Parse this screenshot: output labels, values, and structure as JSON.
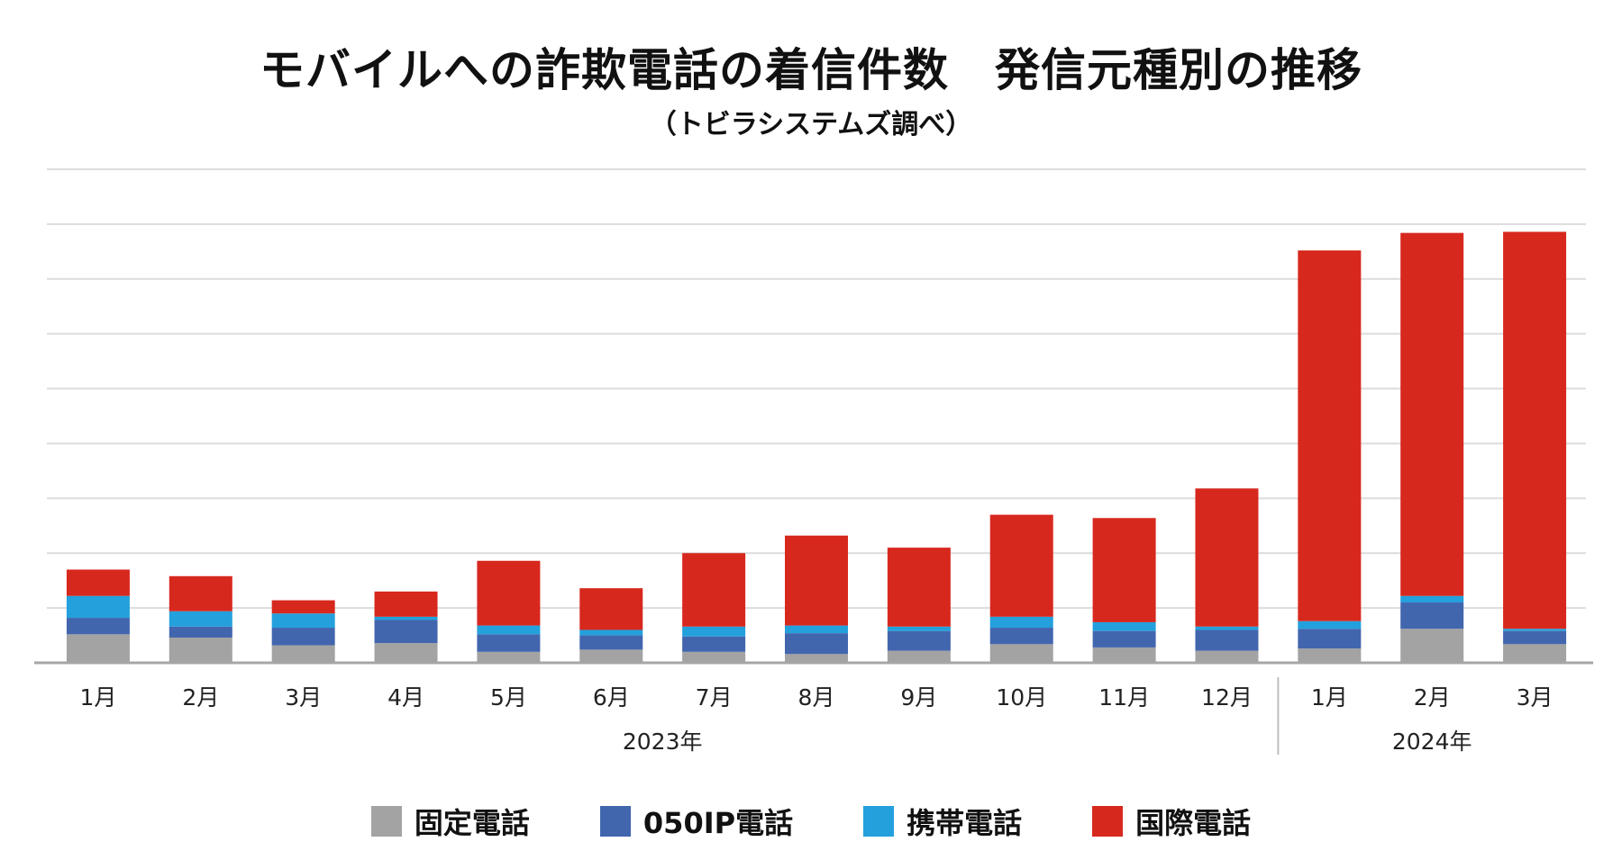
{
  "chart_data": {
    "type": "bar",
    "stacked": true,
    "title": "モバイルへの詐欺電話の着信件数　発信元種別の推移",
    "subtitle": "（トビラシステムズ調べ）",
    "categories": [
      "1月",
      "2月",
      "3月",
      "4月",
      "5月",
      "6月",
      "7月",
      "8月",
      "9月",
      "10月",
      "11月",
      "12月",
      "1月",
      "2月",
      "3月"
    ],
    "groups": [
      {
        "label": "2023年",
        "start": 0,
        "end": 11
      },
      {
        "label": "2024年",
        "start": 12,
        "end": 14
      }
    ],
    "series": [
      {
        "name": "固定電話",
        "color": "#a3a3a3",
        "values": [
          26,
          23,
          16,
          18,
          10,
          12,
          10,
          8,
          11,
          17,
          14,
          11,
          13,
          31,
          17
        ]
      },
      {
        "name": "050IP電話",
        "color": "#4266ae",
        "values": [
          15,
          10,
          16,
          21,
          16,
          13,
          14,
          19,
          18,
          15,
          15,
          19,
          18,
          24,
          12
        ]
      },
      {
        "name": "携帯電話",
        "color": "#24a0dc",
        "values": [
          20,
          14,
          13,
          3,
          8,
          5,
          9,
          7,
          4,
          10,
          8,
          3,
          7,
          6,
          2
        ]
      },
      {
        "name": "国際電話",
        "color": "#d7281e",
        "values": [
          24,
          32,
          12,
          23,
          59,
          38,
          67,
          82,
          72,
          93,
          95,
          126,
          338,
          331,
          362
        ]
      }
    ],
    "ylim": [
      0,
      450
    ],
    "ygrid_step": 50,
    "xlabel": "",
    "ylabel": "",
    "legend": "bottom"
  }
}
